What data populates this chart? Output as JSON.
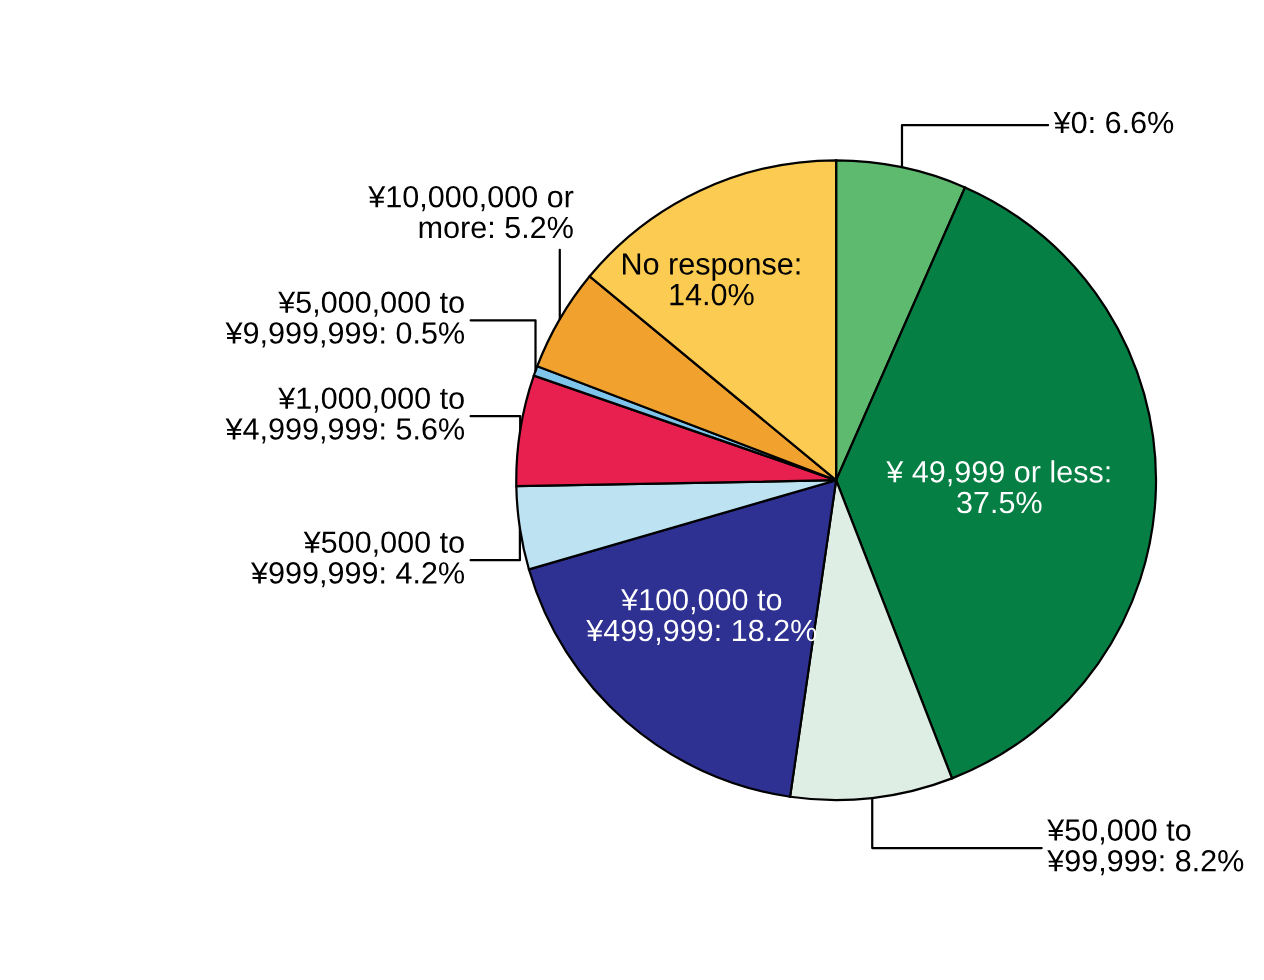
{
  "chart_data": {
    "type": "pie",
    "categories": [
      "¥0: 6.6%",
      "¥ 49,999 or less:\n37.5%",
      "¥50,000 to\n¥99,999: 8.2%",
      "¥100,000 to\n¥499,999: 18.2%",
      "¥500,000 to\n¥999,999: 4.2%",
      "¥1,000,000 to\n¥4,999,999: 5.6%",
      "¥5,000,000 to\n¥9,999,999: 0.5%",
      "¥10,000,000 or\nmore: 5.2%",
      "No response:\n14.0%"
    ],
    "values": [
      6.6,
      37.5,
      8.2,
      18.2,
      4.2,
      5.6,
      0.5,
      5.2,
      14.0
    ],
    "colors": [
      "#5dba6e",
      "#067f44",
      "#dfeee5",
      "#2e3192",
      "#bde3f2",
      "#e8204f",
      "#7fc4ea",
      "#f1a22e",
      "#fccb52"
    ]
  }
}
